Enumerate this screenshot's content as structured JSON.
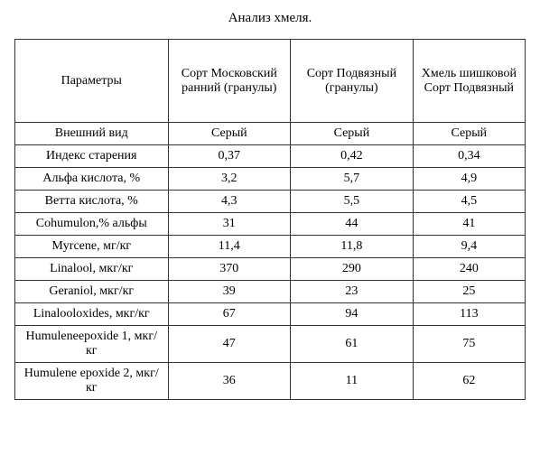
{
  "title": "Анализ хмеля.",
  "columns": [
    "Параметры",
    "Сорт Московский ранний (гранулы)",
    "Сорт Подвязный (гранулы)",
    "Хмель шишковой Сорт Подвязный"
  ],
  "rows": [
    {
      "param": "Внешний вид",
      "v1": "Серый",
      "v2": "Серый",
      "v3": "Серый"
    },
    {
      "param": "Индекс старения",
      "v1": "0,37",
      "v2": "0,42",
      "v3": "0,34"
    },
    {
      "param": "Альфа кислота, %",
      "v1": "3,2",
      "v2": "5,7",
      "v3": "4,9"
    },
    {
      "param": "Ветта кислота, %",
      "v1": "4,3",
      "v2": "5,5",
      "v3": "4,5"
    },
    {
      "param": "Cohumulon,% альфы",
      "v1": "31",
      "v2": "44",
      "v3": "41"
    },
    {
      "param": "Myrcene, мг/кг",
      "v1": "11,4",
      "v2": "11,8",
      "v3": "9,4"
    },
    {
      "param": "Linalool, мкг/кг",
      "v1": "370",
      "v2": "290",
      "v3": "240"
    },
    {
      "param": "Geraniol, мкг/кг",
      "v1": "39",
      "v2": "23",
      "v3": "25"
    },
    {
      "param": "Linalooloxides, мкг/кг",
      "v1": "67",
      "v2": "94",
      "v3": "113"
    },
    {
      "param": "Humuleneepoxide 1, мкг/кг",
      "v1": "47",
      "v2": "61",
      "v3": "75"
    },
    {
      "param": "Humulene epoxide 2,  мкг/кг",
      "v1": "36",
      "v2": "11",
      "v3": "62"
    }
  ]
}
